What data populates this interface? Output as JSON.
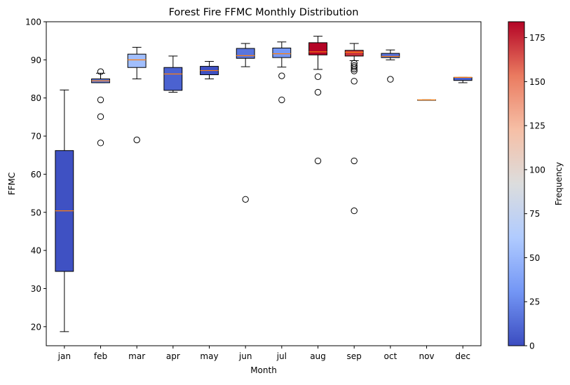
{
  "chart_data": {
    "type": "boxplot",
    "title": "Forest Fire FFMC Monthly Distribution",
    "xlabel": "Month",
    "ylabel": "FFMC",
    "ylim": [
      15,
      100
    ],
    "yticks": [
      20,
      30,
      40,
      50,
      60,
      70,
      80,
      90,
      100
    ],
    "grid": false,
    "categories": [
      "jan",
      "feb",
      "mar",
      "apr",
      "may",
      "jun",
      "jul",
      "aug",
      "sep",
      "oct",
      "nov",
      "dec"
    ],
    "boxes": [
      {
        "month": "jan",
        "whislo": 18.7,
        "q1": 34.5,
        "med": 50.4,
        "q3": 66.2,
        "whishi": 82.1,
        "fliers": [],
        "frequency": 2
      },
      {
        "month": "feb",
        "whislo": 84.0,
        "q1": 84.0,
        "med": 84.5,
        "q3": 85.0,
        "whishi": 86.5,
        "fliers": [
          68.2,
          75.1,
          79.5,
          86.9
        ],
        "frequency": 20
      },
      {
        "month": "mar",
        "whislo": 85.0,
        "q1": 88.0,
        "med": 90.0,
        "q3": 91.5,
        "whishi": 93.3,
        "fliers": [
          69.0
        ],
        "frequency": 54
      },
      {
        "month": "apr",
        "whislo": 81.5,
        "q1": 82.0,
        "med": 86.3,
        "q3": 88.0,
        "whishi": 91.0,
        "fliers": [],
        "frequency": 9
      },
      {
        "month": "may",
        "whislo": 85.0,
        "q1": 86.1,
        "med": 87.2,
        "q3": 88.3,
        "whishi": 89.6,
        "fliers": [],
        "frequency": 2
      },
      {
        "month": "jun",
        "whislo": 88.2,
        "q1": 90.4,
        "med": 91.1,
        "q3": 93.0,
        "whishi": 94.3,
        "fliers": [
          53.4
        ],
        "frequency": 17
      },
      {
        "month": "jul",
        "whislo": 88.1,
        "q1": 90.6,
        "med": 91.6,
        "q3": 93.1,
        "whishi": 94.7,
        "fliers": [
          79.5,
          85.8
        ],
        "frequency": 32
      },
      {
        "month": "aug",
        "whislo": 87.5,
        "q1": 91.3,
        "med": 92.1,
        "q3": 94.5,
        "whishi": 96.2,
        "fliers": [
          63.5,
          81.5,
          85.6
        ],
        "frequency": 184
      },
      {
        "month": "sep",
        "whislo": 89.8,
        "q1": 91.0,
        "med": 92.0,
        "q3": 92.5,
        "whishi": 94.3,
        "fliers": [
          50.4,
          63.5,
          84.4,
          87.1,
          87.6,
          88.1,
          88.5,
          89.1
        ],
        "frequency": 172
      },
      {
        "month": "oct",
        "whislo": 90.0,
        "q1": 90.6,
        "med": 90.9,
        "q3": 91.7,
        "whishi": 92.6,
        "fliers": [
          84.9
        ],
        "frequency": 15
      },
      {
        "month": "nov",
        "whislo": 79.5,
        "q1": 79.5,
        "med": 79.5,
        "q3": 79.5,
        "whishi": 79.5,
        "fliers": [],
        "frequency": 1
      },
      {
        "month": "dec",
        "whislo": 84.0,
        "q1": 84.6,
        "med": 85.4,
        "q3": 85.4,
        "whishi": 85.4,
        "fliers": [],
        "frequency": 9
      }
    ],
    "colorbar": {
      "label": "Frequency",
      "colormap": "coolwarm",
      "range": [
        0,
        184
      ],
      "ticks": [
        0,
        25,
        50,
        75,
        100,
        125,
        150,
        175
      ]
    },
    "colors": {
      "median": "#ff7f0e",
      "outline": "#000000",
      "cmap_stops": [
        "#3b4cc0",
        "#7396f5",
        "#b0cbff",
        "#dcdddd",
        "#f6bfa6",
        "#ea7b60",
        "#b40426"
      ]
    }
  }
}
